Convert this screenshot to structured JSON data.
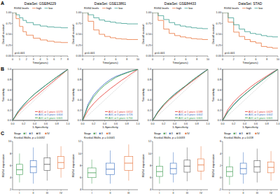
{
  "chart_data": [
    {
      "type": "line",
      "line_style": "step",
      "panel_label": "A",
      "title": "DataSet: GSE84229",
      "x_label": "Time(years)",
      "y_label": "Overall survival",
      "legend": "top",
      "legend_title": "RGS4 levels",
      "annotations": [
        "p<0.001"
      ],
      "grid": false,
      "xlim": [
        0,
        8
      ],
      "xticks": [
        0,
        1,
        2,
        3,
        4,
        5,
        6,
        7,
        8
      ],
      "ylim": [
        0,
        1
      ],
      "yticks": [
        {
          "value": 0,
          "label": "0.00"
        },
        {
          "value": 0.25,
          "label": "0.25"
        },
        {
          "value": 0.5,
          "label": "0.50"
        },
        {
          "value": 0.75,
          "label": "0.75"
        },
        {
          "value": 1,
          "label": "1.00"
        }
      ],
      "x": [
        0,
        0.5,
        1,
        1.5,
        2,
        3,
        4,
        5,
        6,
        7,
        8
      ],
      "series": [
        {
          "name": "high",
          "color": "#e8743b",
          "values": [
            1,
            0.86,
            0.68,
            0.56,
            0.48,
            0.41,
            0.37,
            0.34,
            0.32,
            0.31,
            0.31
          ]
        },
        {
          "name": "low",
          "color": "#3a9d8f",
          "values": [
            1,
            0.95,
            0.88,
            0.82,
            0.77,
            0.72,
            0.69,
            0.67,
            0.66,
            0.65,
            0.65
          ]
        }
      ]
    },
    {
      "type": "line",
      "line_style": "step",
      "title": "DataSet: GSE13861",
      "x_label": "Time(years)",
      "y_label": "Overall survival",
      "legend": "top",
      "legend_title": "RGS4 levels",
      "annotations": [
        "p<0.001"
      ],
      "grid": false,
      "xlim": [
        0,
        10
      ],
      "xticks": [
        0,
        2,
        4,
        6,
        8,
        10
      ],
      "ylim": [
        0,
        1
      ],
      "yticks": [
        {
          "value": 0,
          "label": "0.00"
        },
        {
          "value": 0.25,
          "label": "0.25"
        },
        {
          "value": 0.5,
          "label": "0.50"
        },
        {
          "value": 0.75,
          "label": "0.75"
        },
        {
          "value": 1,
          "label": "1.00"
        }
      ],
      "x": [
        0,
        1,
        2,
        3,
        4,
        5,
        6,
        7,
        8,
        9,
        10
      ],
      "series": [
        {
          "name": "high",
          "color": "#e8743b",
          "values": [
            1,
            0.8,
            0.6,
            0.5,
            0.45,
            0.42,
            0.4,
            0.39,
            0.38,
            0.38,
            0.38
          ]
        },
        {
          "name": "low",
          "color": "#3a9d8f",
          "values": [
            1,
            0.95,
            0.88,
            0.83,
            0.8,
            0.78,
            0.76,
            0.75,
            0.74,
            0.74,
            0.74
          ]
        }
      ]
    },
    {
      "type": "line",
      "line_style": "step",
      "title": "DataSet: GSE84433",
      "x_label": "Time(years)",
      "y_label": "Overall survival",
      "legend": "top",
      "legend_title": "RGS4 levels",
      "annotations": [
        "p<0.001"
      ],
      "grid": false,
      "xlim": [
        0,
        10
      ],
      "xticks": [
        0,
        2,
        4,
        6,
        8,
        10
      ],
      "ylim": [
        0,
        1
      ],
      "yticks": [
        {
          "value": 0,
          "label": "0.00"
        },
        {
          "value": 0.25,
          "label": "0.25"
        },
        {
          "value": 0.5,
          "label": "0.50"
        },
        {
          "value": 0.75,
          "label": "0.75"
        },
        {
          "value": 1,
          "label": "1.00"
        }
      ],
      "x": [
        0,
        1,
        2,
        3,
        4,
        5,
        6,
        7,
        8,
        9,
        10
      ],
      "series": [
        {
          "name": "high",
          "color": "#e8743b",
          "values": [
            1,
            0.82,
            0.62,
            0.52,
            0.47,
            0.44,
            0.42,
            0.4,
            0.39,
            0.38,
            0.38
          ]
        },
        {
          "name": "low",
          "color": "#3a9d8f",
          "values": [
            1,
            0.93,
            0.84,
            0.77,
            0.72,
            0.69,
            0.67,
            0.65,
            0.64,
            0.63,
            0.63
          ]
        }
      ]
    },
    {
      "type": "line",
      "line_style": "step",
      "title": "DataSet: STAD",
      "x_label": "Time(years)",
      "y_label": "Overall survival",
      "legend": "top",
      "legend_title": "RGS4 levels",
      "annotations": [
        "p<0.001"
      ],
      "grid": false,
      "xlim": [
        0,
        10
      ],
      "xticks": [
        0,
        2,
        4,
        6,
        8,
        10
      ],
      "ylim": [
        0,
        1
      ],
      "yticks": [
        {
          "value": 0,
          "label": "0.00"
        },
        {
          "value": 0.25,
          "label": "0.25"
        },
        {
          "value": 0.5,
          "label": "0.50"
        },
        {
          "value": 0.75,
          "label": "0.75"
        },
        {
          "value": 1,
          "label": "1.00"
        }
      ],
      "x": [
        0,
        1,
        2,
        3,
        4,
        5,
        6,
        7,
        8,
        9,
        10
      ],
      "series": [
        {
          "name": "high",
          "color": "#e8743b",
          "values": [
            1,
            0.78,
            0.55,
            0.45,
            0.38,
            0.33,
            0.3,
            0.22,
            0.2,
            0.18,
            0.18
          ]
        },
        {
          "name": "low",
          "color": "#3a9d8f",
          "values": [
            1,
            0.88,
            0.72,
            0.62,
            0.56,
            0.52,
            0.5,
            0.47,
            0.45,
            0.44,
            0.44
          ]
        }
      ]
    },
    {
      "type": "line",
      "line_style": "solid",
      "panel_label": "B",
      "x_label": "1-Specificity",
      "y_label": "Sensitivity",
      "legend": "bottom-right",
      "grid": false,
      "xlim": [
        0,
        1
      ],
      "xticks": [
        {
          "value": 0,
          "label": "0.0"
        },
        0.2,
        0.4,
        0.6,
        0.8,
        {
          "value": 1,
          "label": "1.0"
        }
      ],
      "ylim": [
        0,
        1
      ],
      "yticks": [
        {
          "value": 0,
          "label": "0.0"
        },
        0.2,
        0.4,
        0.6,
        0.8,
        {
          "value": 1,
          "label": "1.0"
        }
      ],
      "x": [
        0,
        0.1,
        0.2,
        0.3,
        0.4,
        0.5,
        0.6,
        0.7,
        0.8,
        0.9,
        1
      ],
      "series": [
        {
          "name": "AUC at 1 years: 0.573",
          "color": "#e4312b",
          "values": [
            0,
            0.15,
            0.27,
            0.37,
            0.46,
            0.55,
            0.64,
            0.73,
            0.82,
            0.91,
            1
          ]
        },
        {
          "name": "AUC at 3 years: 0.604",
          "color": "#2f5fbf",
          "values": [
            0,
            0.18,
            0.31,
            0.42,
            0.52,
            0.61,
            0.69,
            0.77,
            0.85,
            0.93,
            1
          ]
        },
        {
          "name": "AUC at 5 years: 0.601",
          "color": "#2e9a3a",
          "values": [
            0,
            0.17,
            0.3,
            0.42,
            0.52,
            0.6,
            0.69,
            0.77,
            0.85,
            0.92,
            1
          ]
        }
      ]
    },
    {
      "type": "line",
      "line_style": "solid",
      "x_label": "1-Specificity",
      "y_label": "Sensitivity",
      "legend": "bottom-right",
      "grid": false,
      "xlim": [
        0,
        1
      ],
      "xticks": [
        {
          "value": 0,
          "label": "0.0"
        },
        0.2,
        0.4,
        0.6,
        0.8,
        {
          "value": 1,
          "label": "1.0"
        }
      ],
      "ylim": [
        0,
        1
      ],
      "yticks": [
        {
          "value": 0,
          "label": "0.0"
        },
        0.2,
        0.4,
        0.6,
        0.8,
        {
          "value": 1,
          "label": "1.0"
        }
      ],
      "x": [
        0,
        0.1,
        0.2,
        0.3,
        0.4,
        0.5,
        0.6,
        0.7,
        0.8,
        0.9,
        1
      ],
      "series": [
        {
          "name": "AUC at 1 years: 0.614",
          "color": "#e4312b",
          "values": [
            0,
            0.2,
            0.33,
            0.44,
            0.53,
            0.62,
            0.7,
            0.78,
            0.85,
            0.93,
            1
          ]
        },
        {
          "name": "AUC at 3 years: 0.726",
          "color": "#2f5fbf",
          "values": [
            0,
            0.32,
            0.5,
            0.62,
            0.72,
            0.8,
            0.86,
            0.9,
            0.94,
            0.97,
            1
          ]
        },
        {
          "name": "AUC at 5 years: 0.700",
          "color": "#2e9a3a",
          "values": [
            0,
            0.28,
            0.46,
            0.59,
            0.69,
            0.77,
            0.84,
            0.89,
            0.93,
            0.97,
            1
          ]
        }
      ]
    },
    {
      "type": "line",
      "line_style": "solid",
      "x_label": "1-Specificity",
      "y_label": "Sensitivity",
      "legend": "bottom-right",
      "grid": false,
      "xlim": [
        0,
        1
      ],
      "xticks": [
        {
          "value": 0,
          "label": "0.0"
        },
        0.2,
        0.4,
        0.6,
        0.8,
        {
          "value": 1,
          "label": "1.0"
        }
      ],
      "ylim": [
        0,
        1
      ],
      "yticks": [
        {
          "value": 0,
          "label": "0.0"
        },
        0.2,
        0.4,
        0.6,
        0.8,
        {
          "value": 1,
          "label": "1.0"
        }
      ],
      "x": [
        0,
        0.1,
        0.2,
        0.3,
        0.4,
        0.5,
        0.6,
        0.7,
        0.8,
        0.9,
        1
      ],
      "series": [
        {
          "name": "AUC at 1 years: 0.588",
          "color": "#e4312b",
          "values": [
            0,
            0.16,
            0.29,
            0.4,
            0.49,
            0.58,
            0.67,
            0.75,
            0.83,
            0.92,
            1
          ]
        },
        {
          "name": "AUC at 3 years: 0.602",
          "color": "#2f5fbf",
          "values": [
            0,
            0.18,
            0.31,
            0.42,
            0.52,
            0.6,
            0.68,
            0.77,
            0.85,
            0.93,
            1
          ]
        },
        {
          "name": "AUC at 5 years: 0.601",
          "color": "#2e9a3a",
          "values": [
            0,
            0.17,
            0.31,
            0.42,
            0.51,
            0.6,
            0.68,
            0.77,
            0.85,
            0.92,
            1
          ]
        }
      ]
    },
    {
      "type": "line",
      "line_style": "solid",
      "x_label": "1-Specificity",
      "y_label": "Sensitivity",
      "legend": "bottom-right",
      "grid": false,
      "xlim": [
        0,
        1
      ],
      "xticks": [
        {
          "value": 0,
          "label": "0.0"
        },
        0.2,
        0.4,
        0.6,
        0.8,
        {
          "value": 1,
          "label": "1.0"
        }
      ],
      "ylim": [
        0,
        1
      ],
      "yticks": [
        {
          "value": 0,
          "label": "0.0"
        },
        0.2,
        0.4,
        0.6,
        0.8,
        {
          "value": 1,
          "label": "1.0"
        }
      ],
      "x": [
        0,
        0.1,
        0.2,
        0.3,
        0.4,
        0.5,
        0.6,
        0.7,
        0.8,
        0.9,
        1
      ],
      "series": [
        {
          "name": "AUC at 1 years: 0.629",
          "color": "#e4312b",
          "values": [
            0,
            0.22,
            0.36,
            0.47,
            0.56,
            0.65,
            0.73,
            0.8,
            0.87,
            0.94,
            1
          ]
        },
        {
          "name": "AUC at 3 years: 0.602",
          "color": "#2f5fbf",
          "values": [
            0,
            0.18,
            0.31,
            0.42,
            0.51,
            0.6,
            0.69,
            0.77,
            0.85,
            0.93,
            1
          ]
        },
        {
          "name": "AUC at 5 years: 0.601",
          "color": "#2e9a3a",
          "values": [
            0,
            0.17,
            0.3,
            0.41,
            0.51,
            0.6,
            0.69,
            0.77,
            0.85,
            0.92,
            1
          ]
        }
      ]
    },
    {
      "type": "box",
      "panel_label": "C",
      "y_label": "RGS4 expression",
      "legend": "top",
      "legend_title": "Stage",
      "annotations": [
        "Kruskal-Wallis, p = 0.0032"
      ],
      "grid": false,
      "categories": [
        "I",
        "II",
        "III",
        "IV"
      ],
      "colors": [
        "#3d9b4f",
        "#3a6fbf",
        "#555555",
        "#e8743b"
      ],
      "ylim": [
        2,
        10
      ],
      "yticks": [
        2,
        4,
        6,
        8,
        10
      ],
      "boxes": [
        {
          "min": 3.2,
          "q1": 4.5,
          "median": 5.3,
          "q3": 6.2,
          "max": 8
        },
        {
          "min": 3,
          "q1": 4.8,
          "median": 5.8,
          "q3": 6.8,
          "max": 9
        },
        {
          "min": 3.5,
          "q1": 5.2,
          "median": 6.2,
          "q3": 7.3,
          "max": 9.6
        },
        {
          "min": 4,
          "q1": 5.5,
          "median": 6.5,
          "q3": 7.5,
          "max": 9.2
        }
      ]
    },
    {
      "type": "box",
      "y_label": "RGS4 expression",
      "legend": "top",
      "legend_title": "Stage",
      "annotations": [
        "Kruskal-Wallis, p = 0.0041"
      ],
      "grid": false,
      "categories": [
        "I",
        "II",
        "III"
      ],
      "colors": [
        "#3d9b4f",
        "#3a6fbf",
        "#e8743b"
      ],
      "ylim": [
        4,
        12
      ],
      "yticks": [
        4,
        6,
        8,
        10,
        12
      ],
      "boxes": [
        {
          "min": 5,
          "q1": 6,
          "median": 6.8,
          "q3": 7.6,
          "max": 9
        },
        {
          "min": 5,
          "q1": 6.5,
          "median": 7.4,
          "q3": 8.4,
          "max": 10.5
        },
        {
          "min": 5.5,
          "q1": 7.2,
          "median": 8.4,
          "q3": 9.5,
          "max": 11.5
        }
      ]
    },
    {
      "type": "box",
      "y_label": "RGS4 expression",
      "legend": "top",
      "legend_title": "Stage",
      "annotations": [
        "Kruskal-Wallis, p = 0.0033"
      ],
      "grid": false,
      "categories": [
        "I",
        "II",
        "III",
        "IV"
      ],
      "colors": [
        "#3d9b4f",
        "#3a6fbf",
        "#555555",
        "#e8743b"
      ],
      "ylim": [
        4,
        12
      ],
      "yticks": [
        4,
        6,
        8,
        10,
        12
      ],
      "boxes": [
        {
          "min": 5,
          "q1": 6.2,
          "median": 7,
          "q3": 7.9,
          "max": 9.5
        },
        {
          "min": 5.2,
          "q1": 6.6,
          "median": 7.5,
          "q3": 8.4,
          "max": 10.2
        },
        {
          "min": 5.4,
          "q1": 6.9,
          "median": 7.9,
          "q3": 8.9,
          "max": 11
        },
        {
          "min": 5.6,
          "q1": 7.1,
          "median": 8.1,
          "q3": 9.1,
          "max": 11.2
        }
      ]
    },
    {
      "type": "box",
      "y_label": "RGS4 expression",
      "legend": "top",
      "legend_title": "Stage",
      "annotations": [
        "Kruskal-Wallis, p = 0.018"
      ],
      "grid": false,
      "categories": [
        "I",
        "II",
        "III",
        "IV"
      ],
      "colors": [
        "#3d9b4f",
        "#3a6fbf",
        "#555555",
        "#e8743b"
      ],
      "ylim": [
        -2,
        6
      ],
      "yticks": [
        -2,
        0,
        2,
        4,
        6
      ],
      "boxes": [
        {
          "min": -1.2,
          "q1": 0.2,
          "median": 1,
          "q3": 1.8,
          "max": 3.5
        },
        {
          "min": -1,
          "q1": 0.6,
          "median": 1.5,
          "q3": 2.4,
          "max": 4.2
        },
        {
          "min": -0.8,
          "q1": 0.9,
          "median": 1.8,
          "q3": 2.8,
          "max": 4.8
        },
        {
          "min": -0.5,
          "q1": 0.8,
          "median": 1.7,
          "q3": 2.6,
          "max": 4.4
        }
      ]
    }
  ]
}
